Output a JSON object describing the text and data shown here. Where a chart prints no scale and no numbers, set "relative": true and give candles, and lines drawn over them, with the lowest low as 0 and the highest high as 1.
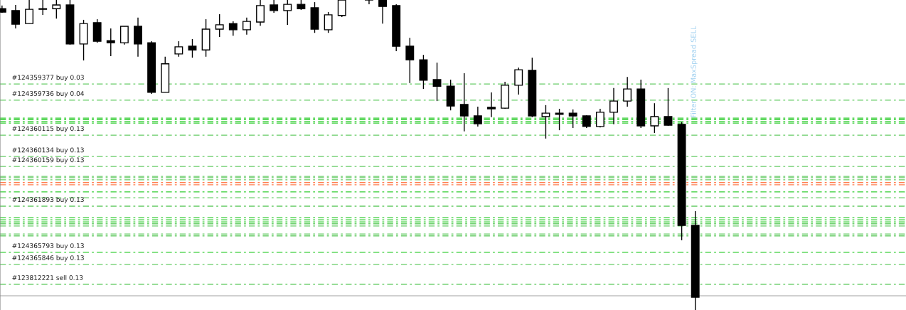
{
  "chart_data": {
    "type": "candlestick",
    "relative": true,
    "categories": [
      null,
      null,
      null,
      null,
      null,
      null,
      null,
      null,
      null,
      null,
      null,
      null,
      null,
      null,
      null,
      null,
      null,
      null,
      null,
      null,
      null,
      null,
      null,
      null,
      null,
      null,
      null,
      null,
      null,
      null,
      null,
      null,
      null,
      null,
      null,
      null,
      null,
      null,
      null,
      null,
      null,
      null,
      null,
      null,
      null,
      null,
      null,
      null,
      null,
      null,
      null,
      null,
      null,
      null,
      null,
      null,
      null,
      null,
      null,
      null,
      null,
      null,
      null,
      null,
      null,
      null,
      null
    ],
    "ohlc": [
      [
        0.972,
        0.982,
        0.959,
        0.961
      ],
      [
        0.966,
        0.984,
        0.908,
        0.922
      ],
      [
        0.924,
        1,
        0.924,
        0.97
      ],
      [
        0.972,
        1,
        0.952,
        0.97
      ],
      [
        0.972,
        1,
        0.94,
        0.984
      ],
      [
        0.984,
        1,
        0.856,
        0.858
      ],
      [
        0.858,
        0.936,
        0.805,
        0.924
      ],
      [
        0.927,
        0.938,
        0.862,
        0.867
      ],
      [
        0.869,
        0.908,
        0.819,
        0.862
      ],
      [
        0.862,
        0.915,
        0.856,
        0.915
      ],
      [
        0.915,
        0.943,
        0.817,
        0.858
      ],
      [
        0.862,
        0.867,
        0.697,
        0.702
      ],
      [
        0.702,
        0.817,
        0.702,
        0.794
      ],
      [
        0.826,
        0.867,
        0.817,
        0.849
      ],
      [
        0.851,
        0.874,
        0.814,
        0.839
      ],
      [
        0.839,
        0.938,
        0.817,
        0.906
      ],
      [
        0.906,
        0.954,
        0.881,
        0.92
      ],
      [
        0.924,
        0.931,
        0.885,
        0.904
      ],
      [
        0.904,
        0.943,
        0.888,
        0.931
      ],
      [
        0.929,
        1,
        0.917,
        0.982
      ],
      [
        0.984,
        1,
        0.959,
        0.966
      ],
      [
        0.966,
        1,
        0.92,
        0.986
      ],
      [
        0.986,
        1,
        0.968,
        0.972
      ],
      [
        0.975,
        0.993,
        0.894,
        0.906
      ],
      [
        0.904,
        0.961,
        0.894,
        0.952
      ],
      [
        0.95,
        1,
        0.945,
        1
      ],
      null,
      [
        1,
        1,
        0.986,
        1
      ],
      [
        1,
        1,
        0.924,
        0.979
      ],
      [
        0.982,
        0.986,
        0.835,
        0.851
      ],
      [
        0.851,
        0.878,
        0.732,
        0.807
      ],
      [
        0.807,
        0.823,
        0.713,
        0.741
      ],
      [
        0.743,
        0.798,
        0.674,
        0.722
      ],
      [
        0.722,
        0.743,
        0.644,
        0.658
      ],
      [
        0.663,
        0.764,
        0.576,
        0.626
      ],
      [
        0.626,
        0.656,
        0.592,
        0.601
      ],
      [
        0.654,
        0.702,
        0.622,
        0.649
      ],
      [
        0.651,
        0.736,
        0.649,
        0.725
      ],
      [
        0.725,
        0.782,
        0.695,
        0.775
      ],
      [
        0.773,
        0.814,
        0.622,
        0.626
      ],
      [
        0.624,
        0.661,
        0.553,
        0.635
      ],
      [
        0.635,
        0.649,
        0.58,
        0.631
      ],
      [
        0.635,
        0.647,
        0.587,
        0.626
      ],
      [
        0.626,
        0.628,
        0.587,
        0.592
      ],
      [
        0.592,
        0.649,
        0.589,
        0.638
      ],
      [
        0.638,
        0.716,
        0.599,
        0.674
      ],
      [
        0.674,
        0.752,
        0.656,
        0.713
      ],
      [
        0.713,
        0.743,
        0.587,
        0.594
      ],
      [
        0.594,
        0.667,
        0.571,
        0.624
      ],
      [
        0.624,
        0.716,
        0.594,
        0.596
      ],
      [
        0.599,
        0.606,
        0.225,
        0.273
      ],
      [
        0.273,
        0.319,
        0,
        0.041
      ],
      null,
      null,
      null,
      null,
      null,
      null,
      null,
      null,
      null,
      null,
      null,
      null,
      null,
      null,
      null
    ],
    "ref_lines": [
      {
        "axis": "y",
        "value": 0.729,
        "label": "#124359377 buy 0.03",
        "color": "#66cc66",
        "line_style": "dashdot"
      },
      {
        "axis": "y",
        "value": 0.677,
        "label": "#124359736 buy 0.04",
        "color": "#66cc66",
        "line_style": "dashdot"
      },
      {
        "axis": "y",
        "value": 0.619,
        "label": null,
        "color": "#32cd32",
        "line_style": "dashdot"
      },
      {
        "axis": "y",
        "value": 0.614,
        "label": null,
        "color": "#32cd32",
        "line_style": "dashdot"
      },
      {
        "axis": "y",
        "value": 0.608,
        "label": null,
        "color": "#32cd32",
        "line_style": "dashdot"
      },
      {
        "axis": "y",
        "value": 0.603,
        "label": null,
        "color": "#32cd32",
        "line_style": "dashdot"
      },
      {
        "axis": "y",
        "value": 0.564,
        "label": "#124360115 buy 0.13",
        "color": "#66cc66",
        "line_style": "dashdot"
      },
      {
        "axis": "y",
        "value": 0.495,
        "label": "#124360134 buy 0.13",
        "color": "#66cc66",
        "line_style": "dashdot"
      },
      {
        "axis": "y",
        "value": 0.463,
        "label": "#124360159 buy 0.13",
        "color": "#66cc66",
        "line_style": "dashdot"
      },
      {
        "axis": "y",
        "value": 0.431,
        "label": null,
        "color": "#66cc66",
        "line_style": "dashdot"
      },
      {
        "axis": "y",
        "value": 0.427,
        "label": null,
        "color": "#66cc66",
        "line_style": "dashdot"
      },
      {
        "axis": "y",
        "value": 0.42,
        "label": null,
        "color": "#66cc66",
        "line_style": "dashdot"
      },
      {
        "axis": "y",
        "value": 0.411,
        "label": null,
        "color": "#ff7f50",
        "line_style": "dashdot"
      },
      {
        "axis": "y",
        "value": 0.404,
        "label": null,
        "color": "#ff7f50",
        "line_style": "dashdot"
      },
      {
        "axis": "y",
        "value": 0.381,
        "label": null,
        "color": "#32cd32",
        "line_style": "dashdot"
      },
      {
        "axis": "y",
        "value": 0.362,
        "label": null,
        "color": "#66cc66",
        "line_style": "dashdot"
      },
      {
        "axis": "y",
        "value": 0.335,
        "label": "#124361893 buy 0.13",
        "color": "#66cc66",
        "line_style": "dashdot"
      },
      {
        "axis": "y",
        "value": 0.298,
        "label": null,
        "color": "#32cd32",
        "line_style": "dashdot"
      },
      {
        "axis": "y",
        "value": 0.291,
        "label": null,
        "color": "#32cd32",
        "line_style": "dashdot"
      },
      {
        "axis": "y",
        "value": 0.284,
        "label": null,
        "color": "#32cd32",
        "line_style": "dashdot"
      },
      {
        "axis": "y",
        "value": 0.278,
        "label": null,
        "color": "#66cc66",
        "line_style": "dashdot"
      },
      {
        "axis": "y",
        "value": 0.271,
        "label": null,
        "color": "#66cc66",
        "line_style": "dashdot"
      },
      {
        "axis": "y",
        "value": 0.245,
        "label": null,
        "color": "#66cc66",
        "line_style": "dashdot"
      },
      {
        "axis": "y",
        "value": 0.239,
        "label": null,
        "color": "#66cc66",
        "line_style": "dashdot"
      },
      {
        "axis": "y",
        "value": 0.186,
        "label": "#124365793 buy 0.13",
        "color": "#32cd32",
        "line_style": "dashdot"
      },
      {
        "axis": "y",
        "value": 0.147,
        "label": "#124365846 buy 0.13",
        "color": "#66cc66",
        "line_style": "dashdot"
      },
      {
        "axis": "y",
        "value": 0.083,
        "label": "#123812221 sell 0.13",
        "color": "#66cc66",
        "line_style": "dashdot"
      },
      {
        "axis": "y",
        "value": 0.046,
        "label": null,
        "color": "#c0c0c0",
        "line_style": "solid"
      }
    ],
    "annotations": [
      "Filter ON: MaxSpread SELL"
    ]
  }
}
